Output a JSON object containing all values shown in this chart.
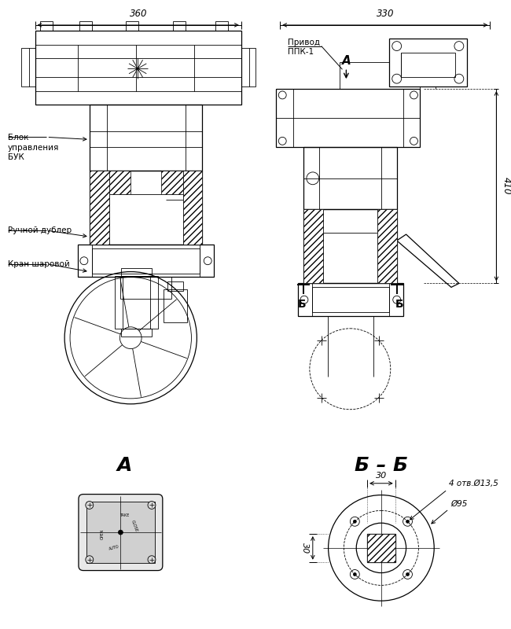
{
  "bg_color": "#ffffff",
  "line_color": "#000000",
  "dim_360": "360",
  "dim_330": "330",
  "dim_410": "410",
  "dim_30a": "30",
  "dim_30b": "30",
  "label_BB": "Б – Б",
  "label_view_A": "А",
  "label_privod": "Привод\nППК-1",
  "label_blok": "Блок\nуправления\nБУК",
  "label_ruchnoy": "Ручной дублер",
  "label_kran": "Кран шаровой",
  "label_4otv": "4 отв.Ø13,5",
  "label_d95": "Ø95"
}
